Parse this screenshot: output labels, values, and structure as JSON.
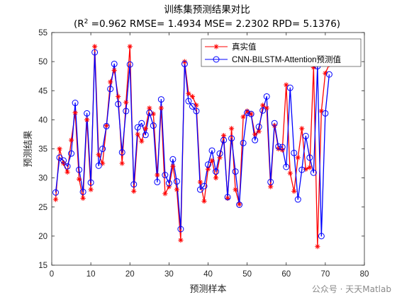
{
  "chart_data": {
    "type": "line",
    "title": "训练集预测结果对比",
    "subtitle_prefix": "(R",
    "subtitle_sup": "2",
    "subtitle_rest": " =0.962 RMSE= 1.4934 MSE= 2.2302 RPD= 5.1376)",
    "xlabel": "预测样本",
    "ylabel": "预测结果",
    "xlim": [
      0,
      80
    ],
    "ylim": [
      15,
      55
    ],
    "xticks": [
      0,
      10,
      20,
      30,
      40,
      50,
      60,
      70,
      80
    ],
    "yticks": [
      15,
      20,
      25,
      30,
      35,
      40,
      45,
      50,
      55
    ],
    "grid": false,
    "legend_position": "top-right",
    "series": [
      {
        "name": "真实值",
        "color": "#ff0000",
        "marker": "asterisk",
        "x": [
          1,
          2,
          3,
          4,
          5,
          6,
          7,
          8,
          9,
          10,
          11,
          12,
          13,
          14,
          15,
          16,
          17,
          18,
          19,
          20,
          21,
          22,
          23,
          24,
          25,
          26,
          27,
          28,
          29,
          30,
          31,
          32,
          33,
          34,
          35,
          36,
          37,
          38,
          39,
          40,
          41,
          42,
          43,
          44,
          45,
          46,
          47,
          48,
          49,
          50,
          51,
          52,
          53,
          54,
          55,
          56,
          57,
          58,
          59,
          60,
          61,
          62,
          63,
          64,
          65,
          66,
          67,
          68,
          69,
          70,
          71
        ],
        "values": [
          26.3,
          35.0,
          32.5,
          31.0,
          36.5,
          41.2,
          29.8,
          26.5,
          40.0,
          28.0,
          52.6,
          34.0,
          32.5,
          39.0,
          46.5,
          48.5,
          44.0,
          32.5,
          43.0,
          52.6,
          27.7,
          37.5,
          36.3,
          38.5,
          42.0,
          41.0,
          30.5,
          42.0,
          27.3,
          28.5,
          32.0,
          28.0,
          19.3,
          50.0,
          44.5,
          44.0,
          42.5,
          29.3,
          26.0,
          31.5,
          33.0,
          30.0,
          33.5,
          37.3,
          26.5,
          38.5,
          28.0,
          25.5,
          40.5,
          41.5,
          41.0,
          37.5,
          38.0,
          42.5,
          42.0,
          28.5,
          39.0,
          35.0,
          34.8,
          46.0,
          30.8,
          27.7,
          33.5,
          38.5,
          31.5,
          31.8,
          49.0,
          18.2,
          41.5,
          48.0,
          49.5
        ]
      },
      {
        "name": "CNN-BILSTM-Attention预测值",
        "color": "#0000ff",
        "marker": "circle",
        "x": [
          1,
          2,
          3,
          4,
          5,
          6,
          7,
          8,
          9,
          10,
          11,
          12,
          13,
          14,
          15,
          16,
          17,
          18,
          19,
          20,
          21,
          22,
          23,
          24,
          25,
          26,
          27,
          28,
          29,
          30,
          31,
          32,
          33,
          34,
          35,
          36,
          37,
          38,
          39,
          40,
          41,
          42,
          43,
          44,
          45,
          46,
          47,
          48,
          49,
          50,
          51,
          52,
          53,
          54,
          55,
          56,
          57,
          58,
          59,
          60,
          61,
          62,
          63,
          64,
          65,
          66,
          67,
          68,
          69,
          70,
          71
        ],
        "values": [
          27.5,
          33.5,
          33.0,
          32.0,
          34.2,
          42.9,
          31.4,
          27.6,
          41.1,
          29.2,
          51.6,
          32.1,
          35.0,
          38.9,
          45.3,
          49.6,
          42.7,
          34.4,
          41.5,
          49.5,
          28.9,
          38.7,
          39.4,
          37.4,
          41.2,
          39.0,
          29.3,
          43.5,
          30.5,
          29.1,
          33.2,
          29.4,
          21.2,
          49.6,
          43.2,
          42.3,
          41.5,
          28.0,
          28.6,
          32.3,
          34.7,
          31.1,
          34.2,
          36.5,
          26.7,
          36.8,
          31.1,
          25.4,
          36.0,
          41.2,
          41.0,
          36.5,
          38.8,
          41.6,
          44.0,
          29.3,
          39.4,
          35.4,
          35.3,
          31.9,
          45.5,
          34.3,
          26.3,
          31.4,
          37.2,
          33.5,
          30.9,
          49.2,
          20.0,
          41.1,
          47.8
        ]
      }
    ]
  },
  "watermark": "公众号 · 天天Matlab"
}
